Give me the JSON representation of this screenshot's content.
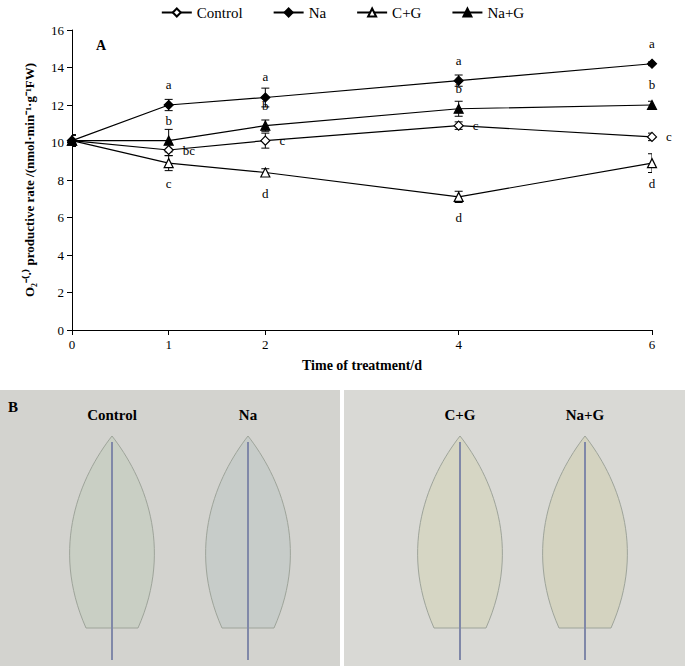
{
  "chart_data": {
    "type": "line",
    "annotations": [
      {
        "text": "A"
      }
    ],
    "x_label": "Time of treatment/d",
    "y_label": "O₂⁻⁽·⁾ productive rate /(nmol·min⁻¹·g⁻¹FW)",
    "x": [
      0,
      1,
      2,
      4,
      6
    ],
    "xlim": [
      0,
      6
    ],
    "xticks": [
      0,
      1,
      2,
      4,
      6
    ],
    "ylim": [
      0,
      16
    ],
    "yticks": [
      0,
      2,
      4,
      6,
      8,
      10,
      12,
      14,
      16
    ],
    "grid": false,
    "legend": "top",
    "series": [
      {
        "name": "Control",
        "color": "#000000",
        "marker": "open_diamond",
        "values": [
          10.1,
          9.6,
          10.1,
          10.9,
          10.3
        ],
        "errors": [
          0.3,
          0.3,
          0.4,
          0.2,
          0.2
        ],
        "letters": [
          null,
          "bc",
          "c",
          "c",
          "c"
        ]
      },
      {
        "name": "Na",
        "color": "#000000",
        "marker": "filled_diamond",
        "values": [
          10.1,
          12.0,
          12.4,
          13.3,
          14.2
        ],
        "errors": [
          0.3,
          0.3,
          0.5,
          0.3,
          0.1
        ],
        "letters": [
          null,
          "a",
          "a",
          "a",
          "a"
        ]
      },
      {
        "name": "C+G",
        "color": "#000000",
        "marker": "open_triangle",
        "values": [
          10.1,
          8.9,
          8.4,
          7.1,
          8.9
        ],
        "errors": [
          0.3,
          0.4,
          0.2,
          0.3,
          0.5
        ],
        "letters": [
          null,
          "c",
          "d",
          "d",
          "d"
        ]
      },
      {
        "name": "Na+G",
        "color": "#000000",
        "marker": "filled_triangle",
        "values": [
          10.1,
          10.1,
          10.9,
          11.8,
          12.0
        ],
        "errors": [
          0.3,
          0.6,
          0.3,
          0.4,
          0.2
        ],
        "letters": [
          null,
          "b",
          "b",
          "b",
          "b"
        ]
      }
    ]
  },
  "panel_b": {
    "label": "B",
    "images": [
      "Control",
      "Na",
      "C+G",
      "Na+G"
    ]
  }
}
